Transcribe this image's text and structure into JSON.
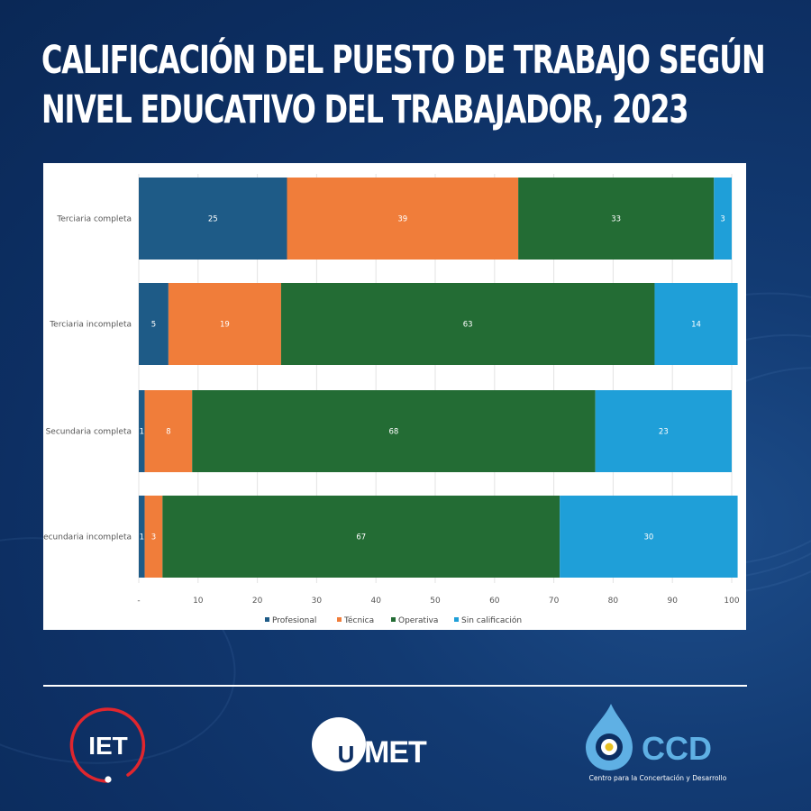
{
  "title_lines": [
    "CALIFICACIÓN DEL PUESTO DE TRABAJO SEGÚN",
    "NIVEL EDUCATIVO DEL TRABAJADOR, 2023"
  ],
  "chart_data": {
    "type": "bar",
    "orientation": "horizontal",
    "stacked": true,
    "categories": [
      "Terciaria completa",
      "Terciaria incompleta",
      "Secundaria completa",
      "Secundaria incompleta"
    ],
    "series": [
      {
        "name": "Profesional",
        "color": "#1e5b87",
        "values": [
          25,
          5,
          1,
          1
        ],
        "labels": [
          "25",
          "5",
          "1",
          "1"
        ]
      },
      {
        "name": "Técnica",
        "color": "#f07d3a",
        "values": [
          39,
          19,
          8,
          3
        ],
        "labels": [
          "39",
          "19",
          "8",
          "3"
        ]
      },
      {
        "name": "Operativa",
        "color": "#236c34",
        "values": [
          33,
          63,
          68,
          67
        ],
        "labels": [
          "33",
          "63",
          "68",
          "67"
        ]
      },
      {
        "name": "Sin calificación",
        "color": "#1f9fd8",
        "values": [
          3,
          14,
          23,
          30
        ],
        "labels": [
          "3",
          "14",
          "23",
          "30"
        ]
      }
    ],
    "x_ticks": [
      "-",
      "10",
      "20",
      "30",
      "40",
      "50",
      "60",
      "70",
      "80",
      "90",
      "100"
    ],
    "xlim": [
      0,
      100
    ],
    "legend_position": "bottom",
    "grid": "vertical"
  },
  "logos": {
    "iet": {
      "text": "IET",
      "color": "#e0262e"
    },
    "umet": {
      "text": "MET",
      "circle_letter": "U"
    },
    "ccd": {
      "text": "CCD",
      "subtitle": "Centro para la Concertación y Desarrollo",
      "color": "#5fb0e4"
    }
  }
}
